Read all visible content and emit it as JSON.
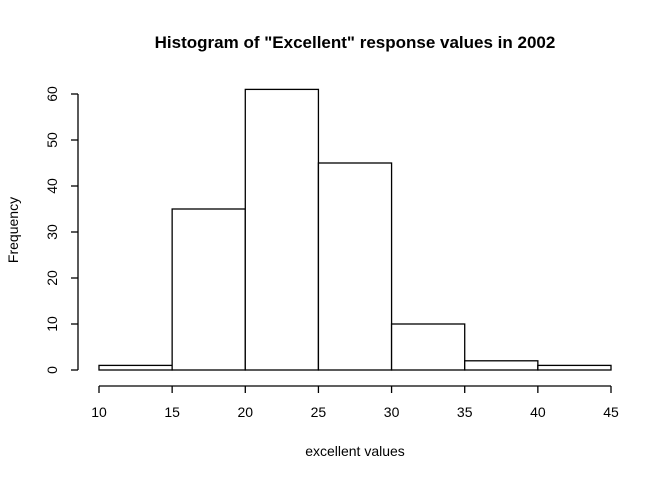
{
  "chart_data": {
    "type": "bar",
    "title": "Histogram of \"Excellent\" response values in 2002",
    "xlabel": "excellent values",
    "ylabel": "Frequency",
    "bins": [
      {
        "start": 10,
        "end": 15,
        "count": 1
      },
      {
        "start": 15,
        "end": 20,
        "count": 35
      },
      {
        "start": 20,
        "end": 25,
        "count": 61
      },
      {
        "start": 25,
        "end": 30,
        "count": 45
      },
      {
        "start": 30,
        "end": 35,
        "count": 10
      },
      {
        "start": 35,
        "end": 40,
        "count": 2
      },
      {
        "start": 40,
        "end": 45,
        "count": 1
      }
    ],
    "xlim": [
      10,
      45
    ],
    "ylim": [
      0,
      60
    ],
    "xticks": [
      10,
      15,
      20,
      25,
      30,
      35,
      40,
      45
    ],
    "yticks": [
      0,
      10,
      20,
      30,
      40,
      50,
      60
    ],
    "grid": false,
    "legend": "none"
  }
}
